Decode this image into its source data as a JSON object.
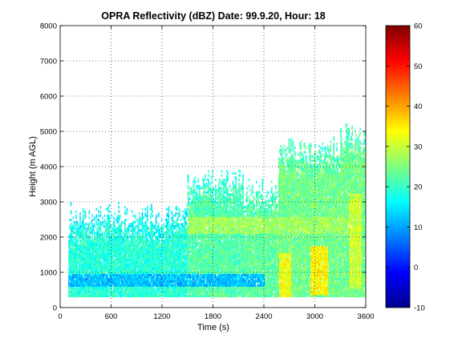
{
  "chart_data": {
    "type": "heatmap",
    "title": "OPRA Reflectivity (dBZ)  Date: 99.9.20, Hour: 18",
    "xlabel": "Time (s)",
    "ylabel": "Height (m AGL)",
    "xlim": [
      0,
      3600
    ],
    "ylim": [
      0,
      8000
    ],
    "xticks": [
      0,
      600,
      1200,
      1800,
      2400,
      3000,
      3600
    ],
    "yticks": [
      0,
      1000,
      2000,
      3000,
      4000,
      5000,
      6000,
      7000,
      8000
    ],
    "grid": "dotted",
    "colormap": "jet",
    "colorbar": {
      "clim": [
        -10,
        60
      ],
      "ticks": [
        -10,
        0,
        10,
        20,
        30,
        40,
        50,
        60
      ]
    },
    "segments": [
      {
        "x": [
          90,
          1500
        ],
        "y": [
          300,
          2600
        ],
        "dbz": 19
      },
      {
        "x": [
          1500,
          2150
        ],
        "y": [
          300,
          3600
        ],
        "dbz": 22
      },
      {
        "x": [
          2150,
          2560
        ],
        "y": [
          300,
          3300
        ],
        "dbz": 23
      },
      {
        "x": [
          2560,
          3300
        ],
        "y": [
          300,
          4500
        ],
        "dbz": 24
      },
      {
        "x": [
          3300,
          3600
        ],
        "y": [
          300,
          4900
        ],
        "dbz": 24
      }
    ],
    "features": [
      {
        "name": "low-level band",
        "x": [
          90,
          2400
        ],
        "y": [
          580,
          900
        ],
        "dbz": 12
      },
      {
        "name": "bright band",
        "x": [
          1500,
          3550
        ],
        "y": [
          2050,
          2550
        ],
        "dbz": 27
      },
      {
        "name": "convective core",
        "x": [
          2580,
          2720
        ],
        "y": [
          300,
          1500
        ],
        "dbz": 33
      },
      {
        "name": "convective core",
        "x": [
          2950,
          3150
        ],
        "y": [
          350,
          1700
        ],
        "dbz": 34
      },
      {
        "name": "convective core",
        "x": [
          3400,
          3540
        ],
        "y": [
          500,
          3200
        ],
        "dbz": 30
      }
    ]
  }
}
